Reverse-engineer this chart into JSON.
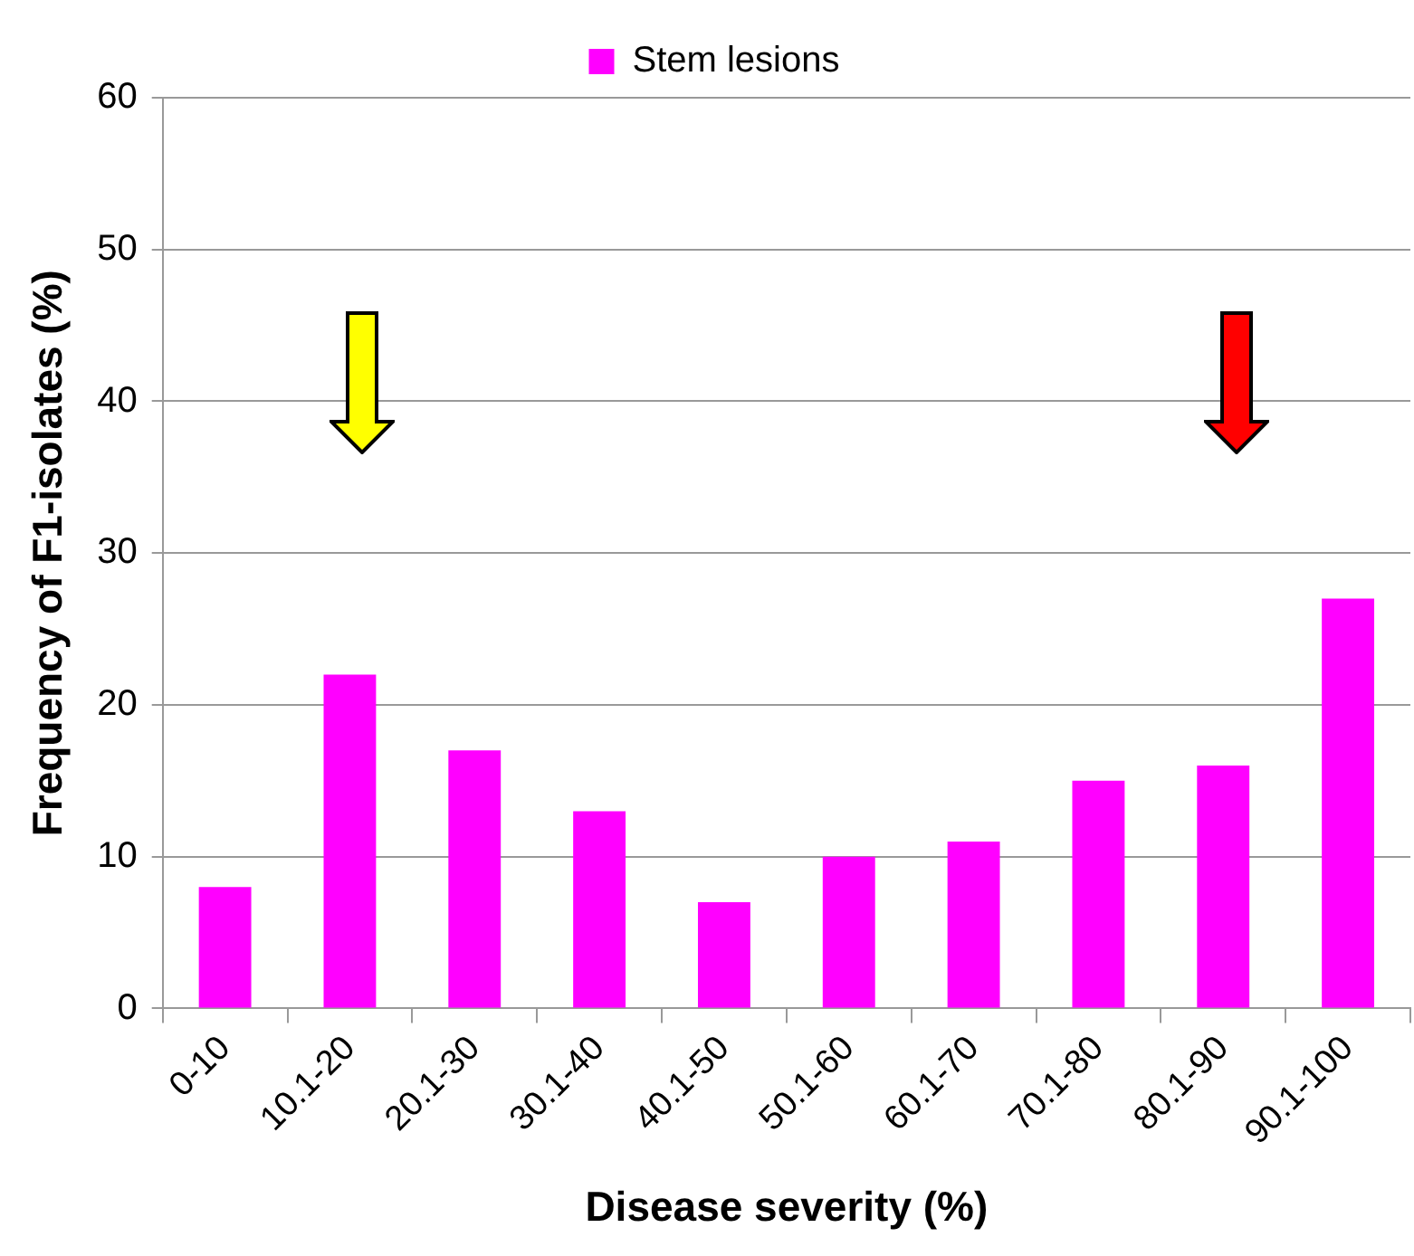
{
  "chart_data": {
    "type": "bar",
    "xlabel": "Disease severity (%)",
    "ylabel": "Frequency of F1-isolates (%)",
    "categories": [
      "0-10",
      "10.1-20",
      "20.1-30",
      "30.1-40",
      "40.1-50",
      "50.1-60",
      "60.1-70",
      "70.1-80",
      "80.1-90",
      "90.1-100"
    ],
    "series": [
      {
        "name": "Stem lesions",
        "color": "#ff00ff",
        "values": [
          8,
          22,
          17,
          13,
          7,
          10,
          11,
          15,
          16,
          27
        ]
      }
    ],
    "ylim": [
      0,
      60
    ],
    "yticks": [
      0,
      10,
      20,
      30,
      40,
      50,
      60
    ],
    "grid": "y",
    "legend": "top"
  }
}
